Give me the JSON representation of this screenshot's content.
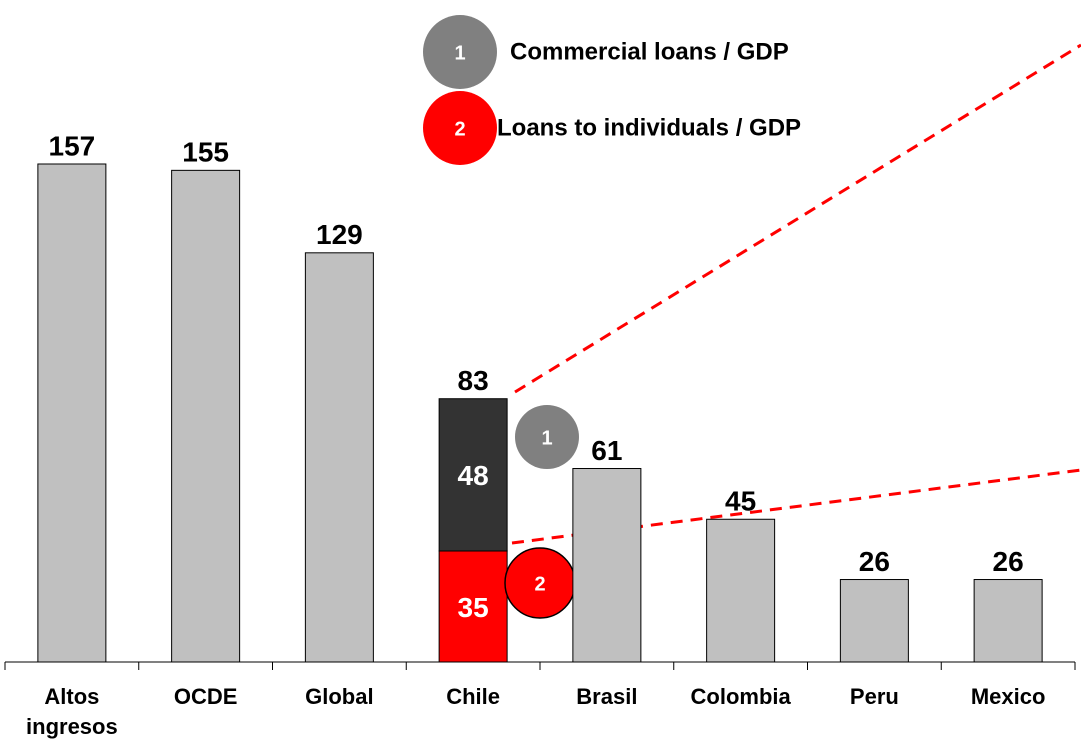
{
  "chart_data": {
    "type": "bar",
    "categories": [
      "Altos ingresos",
      "OCDE",
      "Global",
      "Chile",
      "Brasil",
      "Colombia",
      "Peru",
      "Mexico"
    ],
    "values": [
      157,
      155,
      129,
      83,
      61,
      45,
      26,
      26
    ],
    "color": "#c0c0c0",
    "series": [
      {
        "name": "Commercial loans / GDP",
        "marker": "1",
        "color": "#333333",
        "badge_color": "#808080",
        "values": [
          null,
          null,
          null,
          48,
          null,
          null,
          null,
          null
        ]
      },
      {
        "name": "Loans to individuals / GDP",
        "marker": "2",
        "color": "#ff0000",
        "badge_color": "#ff0000",
        "values": [
          null,
          null,
          null,
          35,
          null,
          null,
          null,
          null
        ]
      }
    ],
    "ylim": [
      0,
      160
    ],
    "grid": false
  }
}
